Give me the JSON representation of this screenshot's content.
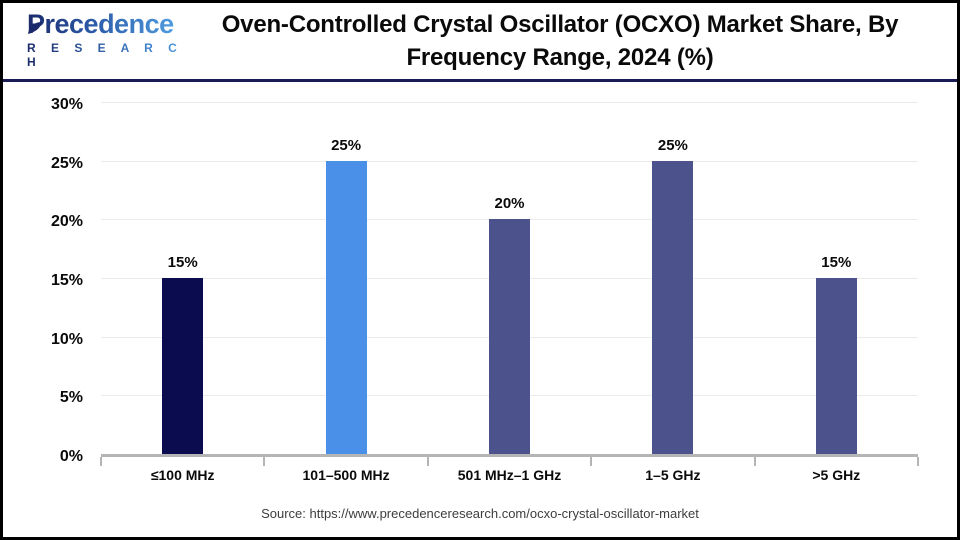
{
  "header": {
    "logo_name": "Precedence",
    "logo_sub": "R E S E A R C H",
    "title_line1": "Oven-Controlled Crystal Oscillator (OCXO) Market Share, By",
    "title_line2": "Frequency Range, 2024 (%)"
  },
  "chart_data": {
    "type": "bar",
    "title": "Oven-Controlled Crystal Oscillator (OCXO) Market Share, By Frequency Range, 2024 (%)",
    "categories": [
      "≤100 MHz",
      "101–500 MHz",
      "501 MHz–1 GHz",
      "1–5 GHz",
      ">5 GHz"
    ],
    "values": [
      15,
      25,
      20,
      25,
      15
    ],
    "value_labels": [
      "15%",
      "25%",
      "20%",
      "25%",
      "15%"
    ],
    "bar_colors": [
      "#0B0B50",
      "#4A90E9",
      "#4C528B",
      "#4C528B",
      "#4C528B"
    ],
    "y_ticks": [
      "0%",
      "5%",
      "10%",
      "15%",
      "20%",
      "25%",
      "30%"
    ],
    "ylim": [
      0,
      30
    ],
    "grid": true,
    "legend": "none",
    "xlabel": "",
    "ylabel": ""
  },
  "footer": {
    "source": "Source: https://www.precedenceresearch.com/ocxo-crystal-oscillator-market"
  },
  "colors": {
    "accent_navy": "#1A1B55",
    "axis_line": "#B5B5B5",
    "gridline": "#EBEBEB",
    "title_text": "#0A0A0A",
    "source_text": "#3D3D3D",
    "logo_gradient_start": "#1B2A6B",
    "logo_gradient_end": "#4E9BE0"
  }
}
